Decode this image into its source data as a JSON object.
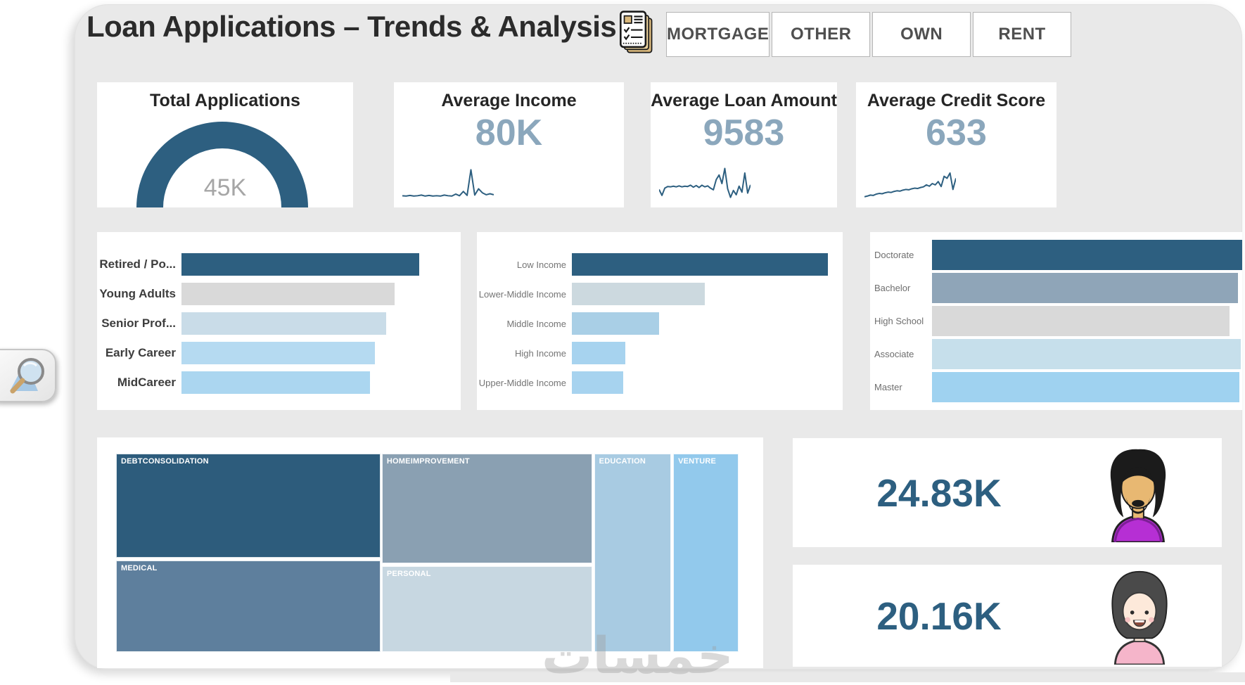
{
  "page": {
    "background": "#ffffff",
    "canvas_color": "#e9e9e9"
  },
  "header": {
    "title": "Loan Applications – Trends & Analysis",
    "clipboard_icon": "checklist-clipboard-icon"
  },
  "slicers": {
    "buttons": [
      {
        "label": "MORTGAGE"
      },
      {
        "label": "OTHER"
      },
      {
        "label": "OWN"
      },
      {
        "label": "RENT"
      }
    ]
  },
  "kpis": {
    "total_applications": {
      "title": "Total Applications",
      "value": "45K"
    },
    "average_income": {
      "title": "Average Income",
      "value": "80K"
    },
    "average_loan_amount": {
      "title": "Average Loan Amount",
      "value": "9583"
    },
    "average_credit_score": {
      "title": "Average Credit Score",
      "value": "633"
    }
  },
  "gender_cards": {
    "male": {
      "value": "24.83K",
      "icon": "male-avatar-icon"
    },
    "female": {
      "value": "20.16K",
      "icon": "female-avatar-icon"
    }
  },
  "watermark": {
    "text": "خمسات"
  },
  "colors": {
    "accent_dark_blue": "#2d5f80",
    "kpi_value_muted": "#8ba7bc",
    "gauge_value_gray": "#a6a6a6",
    "slicer_text": "#4f4f4f"
  },
  "chart_data": [
    {
      "id": "total-apps-gauge",
      "type": "gauge",
      "title": "Total Applications",
      "value_label": "45K",
      "fill_fraction": 1.0,
      "color": "#2d5f80"
    },
    {
      "id": "income-spark",
      "type": "line",
      "title": "Average Income",
      "value_label": "80K",
      "color": "#2d5f80",
      "values": [
        1.3,
        1.2,
        1.4,
        1.2,
        1.3,
        1.5,
        1.2,
        1.4,
        1.2,
        1.3,
        1.2,
        1.5,
        1.3,
        1.2,
        1.8,
        1.3,
        2.6,
        1.4,
        9.2,
        1.5,
        3.4,
        2.2,
        1.6,
        1.9,
        1.6
      ]
    },
    {
      "id": "loan-spark",
      "type": "line",
      "title": "Average Loan Amount",
      "value_label": "9583",
      "color": "#2d5f80",
      "values": [
        3.2,
        1.4,
        3.6,
        4.1,
        4.0,
        4.2,
        4.0,
        4.3,
        4.0,
        4.2,
        4.1,
        4.5,
        3.9,
        4.4,
        3.8,
        4.5,
        4.0,
        4.3,
        3.6,
        3.1,
        6.2,
        7.6,
        5.0,
        9.6,
        3.4,
        0.8,
        2.9,
        1.6,
        4.2,
        2.4,
        8.2,
        2.1,
        4.6
      ]
    },
    {
      "id": "credit-spark",
      "type": "line",
      "title": "Average Credit Score",
      "value_label": "633",
      "color": "#2d5f80",
      "values": [
        1.0,
        1.2,
        1.5,
        1.4,
        1.8,
        2.0,
        1.9,
        2.2,
        2.4,
        2.3,
        2.6,
        2.8,
        2.7,
        3.0,
        3.2,
        3.1,
        3.4,
        3.6,
        3.5,
        3.8,
        4.0,
        4.6,
        4.2,
        5.0,
        4.6,
        5.6,
        4.1,
        7.2,
        6.6,
        8.2,
        3.2,
        6.6
      ]
    },
    {
      "id": "age-bars",
      "type": "bar",
      "orientation": "horizontal",
      "categories": [
        "Retired / Po...",
        "Young Adults",
        "Senior Prof...",
        "Early Career",
        "MidCareer"
      ],
      "values_relative": [
        1.0,
        0.895,
        0.862,
        0.814,
        0.793
      ],
      "colors": [
        "#2d5f80",
        "#d9d9d9",
        "#c9dce8",
        "#b5daf1",
        "#abd6f0"
      ]
    },
    {
      "id": "income-bars",
      "type": "bar",
      "orientation": "horizontal",
      "categories": [
        "Low Income",
        "Lower-Middle Income",
        "Middle Income",
        "High Income",
        "Upper-Middle Income"
      ],
      "values_relative": [
        1.0,
        0.52,
        0.34,
        0.21,
        0.2
      ],
      "colors": [
        "#2d5f80",
        "#ccd9df",
        "#a9cfe6",
        "#a7d3ef",
        "#a7d3ef"
      ]
    },
    {
      "id": "education-bars",
      "type": "bar",
      "orientation": "horizontal",
      "categories": [
        "Doctorate",
        "Bachelor",
        "High School",
        "Associate",
        "Master"
      ],
      "values_relative": [
        1.0,
        0.986,
        0.96,
        0.995,
        0.99
      ],
      "colors": [
        "#2d5f80",
        "#8fa5b8",
        "#d9d9d9",
        "#c6dfeb",
        "#9fd2f0"
      ]
    },
    {
      "id": "purpose-treemap",
      "type": "treemap",
      "cells": [
        {
          "label": "DEBTCONSOLIDATION",
          "color": "#2d5c7c",
          "rect": [
            0,
            0,
            0.425,
            0.525
          ]
        },
        {
          "label": "MEDICAL",
          "color": "#5e7f9d",
          "rect": [
            0,
            0.539,
            0.425,
            0.461
          ]
        },
        {
          "label": "HOMEIMPROVEMENT",
          "color": "#8aa0b2",
          "rect": [
            0.427,
            0,
            0.338,
            0.553
          ]
        },
        {
          "label": "PERSONAL",
          "color": "#c7d7e1",
          "rect": [
            0.427,
            0.567,
            0.338,
            0.433
          ]
        },
        {
          "label": "EDUCATION",
          "color": "#a8cbe2",
          "rect": [
            0.768,
            0,
            0.124,
            1
          ]
        },
        {
          "label": "VENTURE",
          "color": "#92c9ec",
          "rect": [
            0.895,
            0,
            0.105,
            1
          ]
        }
      ]
    }
  ]
}
